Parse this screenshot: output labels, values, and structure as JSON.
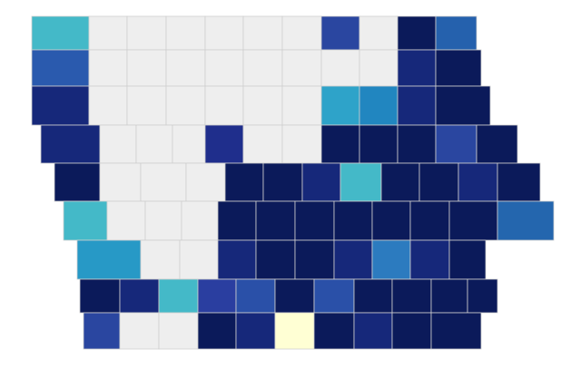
{
  "map": {
    "regions": [
      "#44b9c8",
      "#eeeeee",
      "#eeeeee",
      "#eeeeee",
      "#eeeeee",
      "#eeeeee",
      "#eeeeee",
      "#2a46a0",
      "#eeeeee",
      "#0b1a5a",
      "#2561ad",
      "#2a5aae",
      "#eeeeee",
      "#eeeeee",
      "#eeeeee",
      "#eeeeee",
      "#eeeeee",
      "#eeeeee",
      "#eeeeee",
      "#eeeeee",
      "#16287a",
      "#0b1a5a",
      "#16287a",
      "#eeeeee",
      "#eeeeee",
      "#eeeeee",
      "#eeeeee",
      "#eeeeee",
      "#eeeeee",
      "#2ea3c9",
      "#2186c0",
      "#16287a",
      "#0b1a5a",
      "#16287a",
      "#eeeeee",
      "#eeeeee",
      "#eeeeee",
      "#1f2e8c",
      "#eeeeee",
      "#eeeeee",
      "#0b1a5a",
      "#0b1a5a",
      "#0b1a5a",
      "#2a46a0",
      "#0b1a5a",
      "#0b1a5a",
      "#eeeeee",
      "#eeeeee",
      "#eeeeee",
      "#0b1a5a",
      "#0b1a5a",
      "#16287a",
      "#44b9c8",
      "#0b1a5a",
      "#0b1a5a",
      "#16287a",
      "#0b1a5a",
      "#44b9c8",
      "#eeeeee",
      "#eeeeee",
      "#eeeeee",
      "#0b1a5a",
      "#0b1a5a",
      "#0b1a5a",
      "#0b1a5a",
      "#0b1a5a",
      "#0b1a5a",
      "#0b1a5a",
      "#2466ae",
      "#2799c6",
      "#eeeeee",
      "#eeeeee",
      "#16287a",
      "#0b1a5a",
      "#0b1a5a",
      "#16287a",
      "#2c7bbf",
      "#16287a",
      "#0b1a5a",
      "#0b1a5a",
      "#16287a",
      "#44b9c8",
      "#2a3ea0",
      "#2a50a8",
      "#0b1a5a",
      "#2a50a8",
      "#0b1a5a",
      "#0b1a5a",
      "#0b1a5a",
      "#0b1a5a",
      "#2a46a0",
      "#eeeeee",
      "#eeeeee",
      "#0b1a5a",
      "#16287a",
      "#ffffd4",
      "#0b1a5a",
      "#16287a",
      "#0b1a5a",
      "#0b1a5a"
    ]
  }
}
